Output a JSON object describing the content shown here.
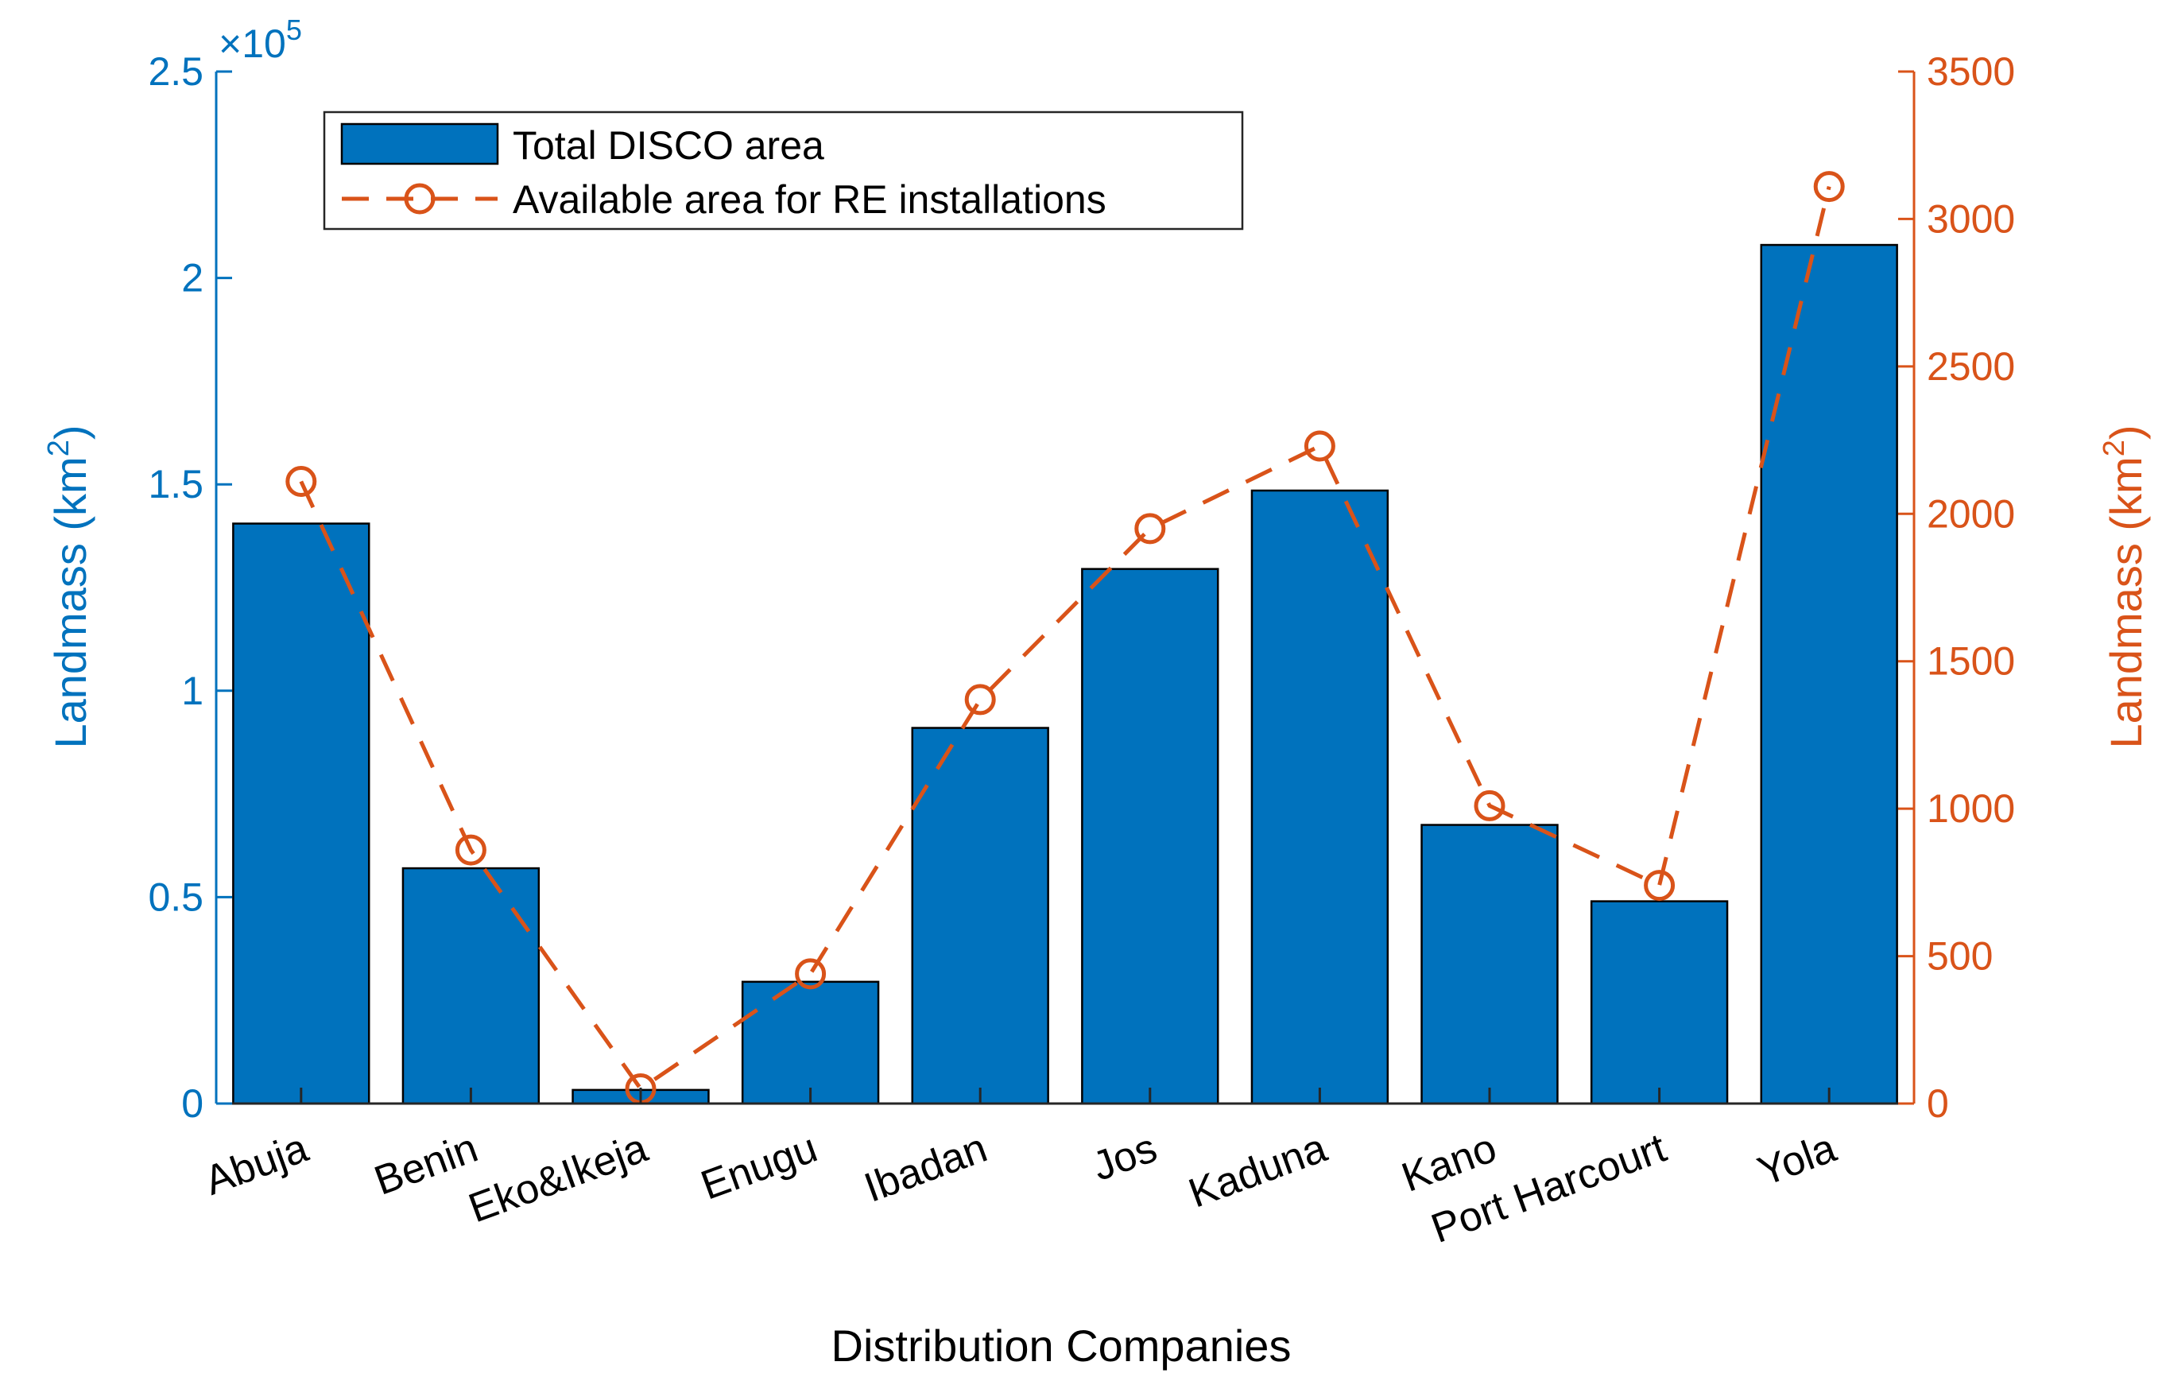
{
  "chart_data": {
    "type": "bar",
    "xlabel": "Distribution Companies",
    "categories": [
      "Abuja",
      "Benin",
      "Eko&Ikeja",
      "Enugu",
      "Ibadan",
      "Jos",
      "Kaduna",
      "Kano",
      "Port Harcourt",
      "Yola"
    ],
    "series": [
      {
        "name": "Total DISCO area",
        "axis": "left",
        "type": "bar",
        "color": "#0072BD",
        "values": [
          140500,
          57000,
          3300,
          29500,
          91000,
          129500,
          148500,
          67500,
          49000,
          208000
        ]
      },
      {
        "name": "Available area for RE installations",
        "axis": "right",
        "type": "line",
        "style": "dashed-circle-markers",
        "color": "#D95319",
        "values": [
          2110,
          860,
          50,
          440,
          1370,
          1950,
          2230,
          1010,
          740,
          3110
        ]
      }
    ],
    "left_axis": {
      "label_main": "Landmass (km",
      "label_sup": "2",
      "label_close": ")",
      "ylim": [
        0,
        250000
      ],
      "ticks": [
        0,
        50000,
        100000,
        150000,
        200000,
        250000
      ],
      "tick_labels": [
        "0",
        "0.5",
        "1",
        "1.5",
        "2",
        "2.5"
      ],
      "exponent_base": "×10",
      "exponent_power": "5"
    },
    "right_axis": {
      "label_main": "Landmass (km",
      "label_sup": "2",
      "label_close": ")",
      "ylim": [
        0,
        3500
      ],
      "ticks": [
        0,
        500,
        1000,
        1500,
        2000,
        2500,
        3000,
        3500
      ],
      "tick_labels": [
        "0",
        "500",
        "1000",
        "1500",
        "2000",
        "2500",
        "3000",
        "3500"
      ]
    },
    "legend": {
      "position": "top-left",
      "entries": [
        "Total DISCO area",
        "Available area for RE installations"
      ]
    }
  }
}
